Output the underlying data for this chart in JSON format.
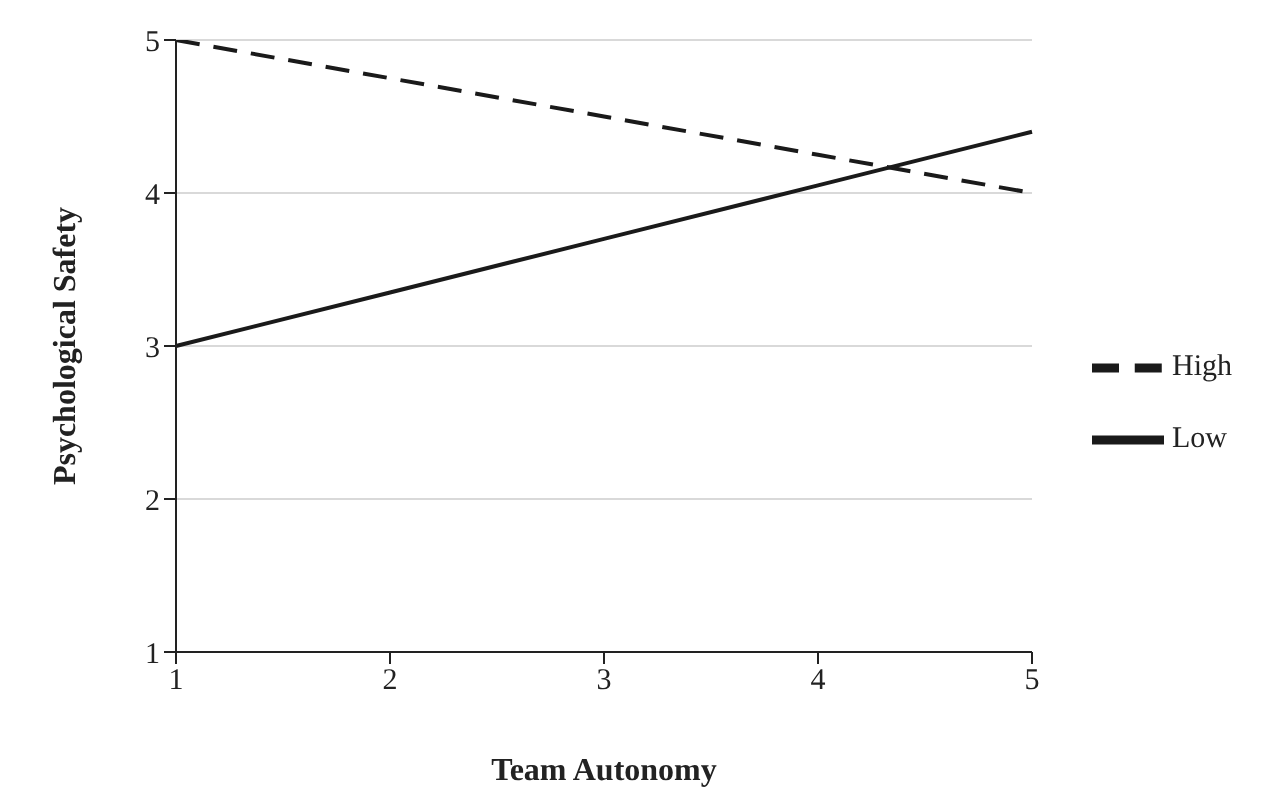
{
  "chart_data": {
    "type": "line",
    "xlabel": "Team Autonomy",
    "ylabel": "Psychological Safety",
    "categories": [
      "1",
      "2",
      "3",
      "4",
      "5"
    ],
    "series": [
      {
        "name": "Low",
        "color": "#1a1a1a",
        "line_style": "solid",
        "values": [
          3.0,
          3.35,
          3.7,
          4.05,
          4.4
        ]
      },
      {
        "name": "High",
        "color": "#1a1a1a",
        "line_style": "dashed",
        "values": [
          5.0,
          4.75,
          4.5,
          4.25,
          4.0
        ]
      }
    ],
    "ylim": [
      1,
      5
    ],
    "yticks": [
      1,
      2,
      3,
      4,
      5
    ],
    "grid": "y",
    "legend": "right"
  }
}
